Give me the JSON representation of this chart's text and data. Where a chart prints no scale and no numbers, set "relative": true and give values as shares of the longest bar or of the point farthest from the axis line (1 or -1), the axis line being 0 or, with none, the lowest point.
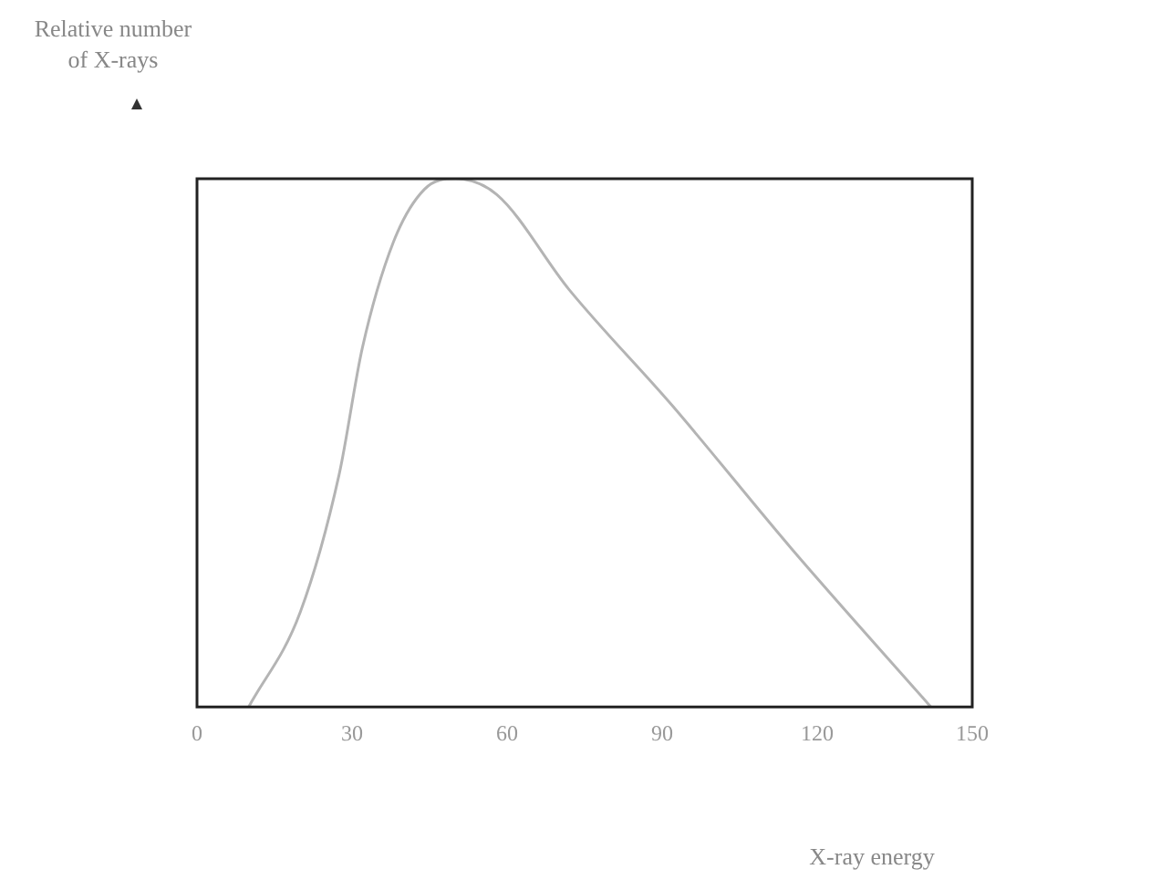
{
  "chart_data": {
    "type": "line",
    "ylabel": "Relative number of X-rays",
    "xlabel": "X-ray energy",
    "relative": true,
    "xlim": [
      0,
      150
    ],
    "xticks": [
      0,
      30,
      60,
      90,
      120,
      150
    ],
    "grid": false,
    "legend": false,
    "marker": "none",
    "line_style": "solid",
    "series": [
      {
        "color": "#b4b4b4",
        "x": [
          10,
          20,
          27.5,
          32,
          38,
          44,
          50,
          58,
          72,
          92,
          115,
          142
        ],
        "values": [
          0,
          0.18,
          0.44,
          0.68,
          0.88,
          0.98,
          1,
          0.97,
          0.79,
          0.57,
          0.3,
          0
        ]
      }
    ]
  }
}
